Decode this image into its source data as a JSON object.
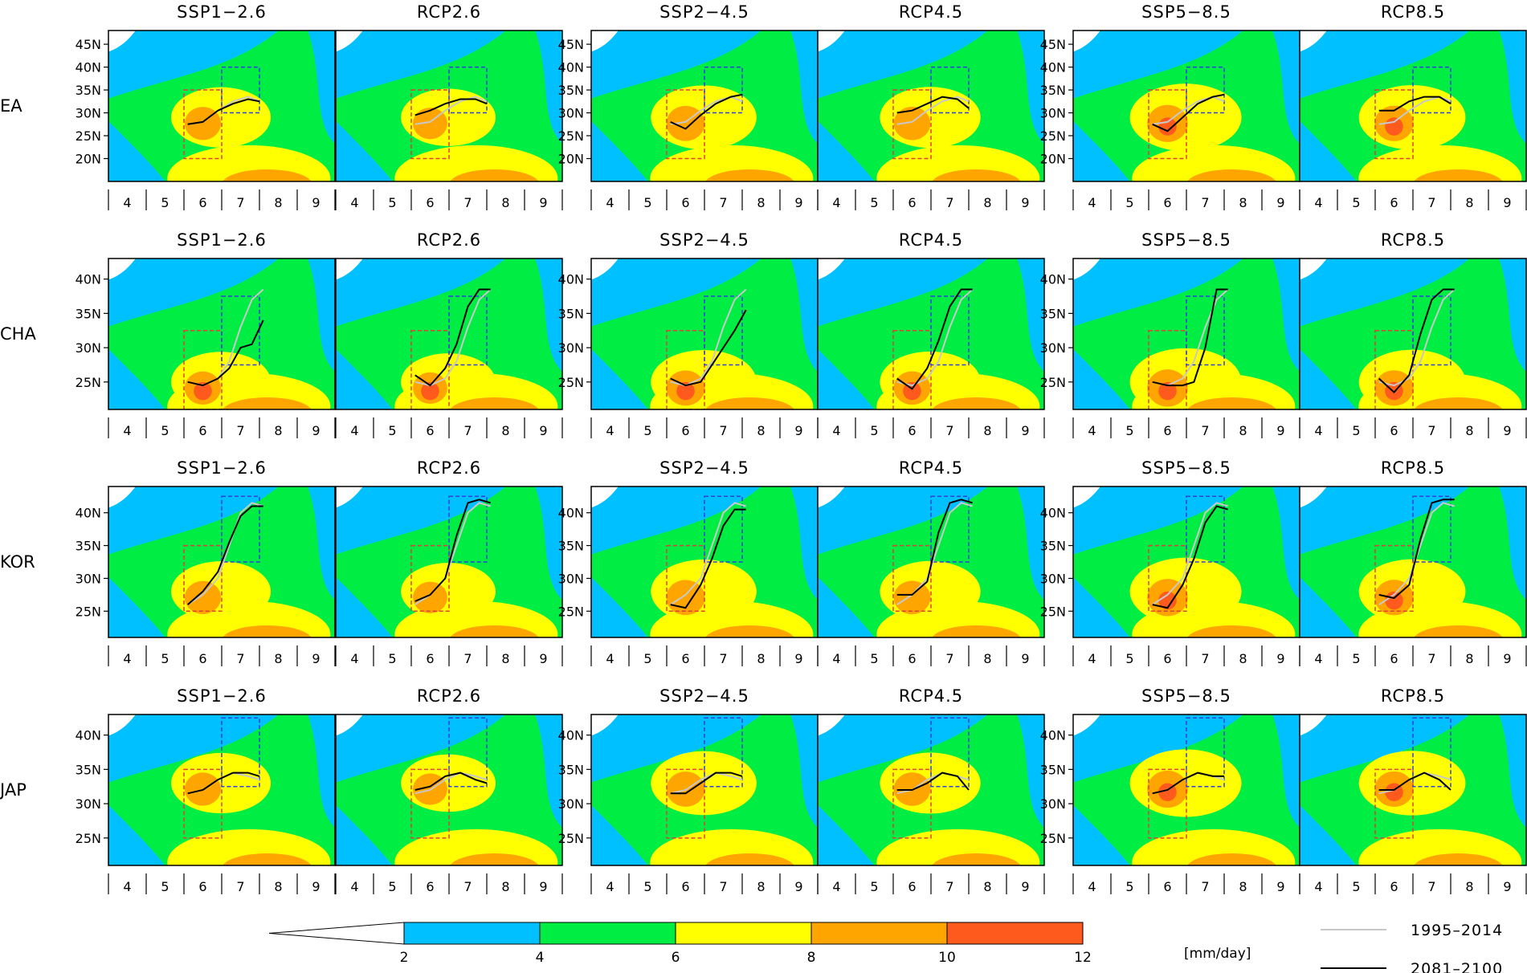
{
  "chart_data": {
    "type": "heatmap",
    "description_axes": {
      "x_ticks": [
        "4",
        "5",
        "6",
        "7",
        "8",
        "9"
      ],
      "x_quantity": "month"
    },
    "colorbar": {
      "levels": [
        2,
        4,
        6,
        8,
        10,
        12
      ],
      "unit_label": "[mm/day]",
      "colors": [
        "#ffffff",
        "#00c0ff",
        "#00ee44",
        "#ffff00",
        "#ffa500",
        "#ff5a1e",
        "#ff1e1e"
      ],
      "extend": "both"
    },
    "legend": {
      "position": "bottom-right",
      "entries": [
        {
          "label": "1995–2014",
          "color": "#c8c8c8"
        },
        {
          "label": "2081–2100",
          "color": "#000000"
        }
      ]
    },
    "column_titles": [
      "SSP1−2.6",
      "RCP2.6",
      "SSP2−4.5",
      "RCP4.5",
      "SSP5−8.5",
      "RCP8.5"
    ],
    "regions": [
      {
        "label": "EA",
        "y_ticks": [
          "20N",
          "25N",
          "30N",
          "35N",
          "40N",
          "45N"
        ],
        "ylim": [
          15,
          48
        ],
        "red_box": {
          "x": [
            5.5,
            6.5
          ],
          "y": [
            20,
            35
          ]
        },
        "blue_box": {
          "x": [
            6.5,
            7.5
          ],
          "y": [
            30,
            40
          ]
        },
        "peak": {
          "x": 6.0,
          "y": 29
        },
        "past_line": {
          "x": [
            5.6,
            6.0,
            6.4,
            6.8,
            7.2,
            7.5
          ],
          "y": [
            27.5,
            28.0,
            30.5,
            32.5,
            33.5,
            32.5
          ]
        },
        "future_lines": [
          {
            "x": [
              5.6,
              6.0,
              6.4,
              6.8,
              7.2,
              7.5
            ],
            "y": [
              27.5,
              28.0,
              30.5,
              32.0,
              33.0,
              32.5
            ]
          },
          {
            "x": [
              5.6,
              6.0,
              6.4,
              6.8,
              7.2,
              7.5
            ],
            "y": [
              29.5,
              30.5,
              32.0,
              33.0,
              33.0,
              32.0
            ]
          },
          {
            "x": [
              5.6,
              6.0,
              6.4,
              6.8,
              7.2,
              7.5
            ],
            "y": [
              28.0,
              26.5,
              29.5,
              32.0,
              33.5,
              34.0
            ]
          },
          {
            "x": [
              5.6,
              6.0,
              6.4,
              6.8,
              7.2,
              7.5
            ],
            "y": [
              30.0,
              30.5,
              32.0,
              33.5,
              33.0,
              31.0
            ]
          },
          {
            "x": [
              5.6,
              6.0,
              6.4,
              6.8,
              7.2,
              7.5
            ],
            "y": [
              27.5,
              26.0,
              29.0,
              32.0,
              33.5,
              34.0
            ]
          },
          {
            "x": [
              5.6,
              6.0,
              6.4,
              6.8,
              7.2,
              7.5
            ],
            "y": [
              30.5,
              30.5,
              32.5,
              33.5,
              33.5,
              32.0
            ]
          }
        ]
      },
      {
        "label": "CHA",
        "y_ticks": [
          "25N",
          "30N",
          "35N",
          "40N"
        ],
        "ylim": [
          21,
          43
        ],
        "red_box": {
          "x": [
            5.5,
            6.5
          ],
          "y": [
            21,
            32.5
          ]
        },
        "blue_box": {
          "x": [
            6.5,
            7.5
          ],
          "y": [
            27.5,
            37.5
          ]
        },
        "peak": {
          "x": 6.0,
          "y": 25
        },
        "past_line": {
          "x": [
            5.6,
            6.0,
            6.4,
            6.7,
            7.0,
            7.3,
            7.6
          ],
          "y": [
            25,
            24.5,
            25.5,
            28,
            33,
            37,
            38.5
          ]
        },
        "future_lines": [
          {
            "x": [
              5.6,
              6.0,
              6.4,
              6.7,
              7.0,
              7.3,
              7.6
            ],
            "y": [
              25,
              24.5,
              25.5,
              27,
              30,
              30.5,
              34
            ]
          },
          {
            "x": [
              5.6,
              6.0,
              6.4,
              6.7,
              7.0,
              7.3,
              7.6
            ],
            "y": [
              26,
              24.5,
              27,
              30.5,
              36,
              38.5,
              38.5
            ]
          },
          {
            "x": [
              5.6,
              6.0,
              6.4,
              6.7,
              7.0,
              7.3,
              7.6
            ],
            "y": [
              25.5,
              24.5,
              25,
              27.5,
              30,
              32.5,
              35.5
            ]
          },
          {
            "x": [
              5.6,
              6.0,
              6.4,
              6.7,
              7.0,
              7.3,
              7.6
            ],
            "y": [
              25.5,
              24,
              27,
              31,
              36,
              38.5,
              38.5
            ]
          },
          {
            "x": [
              5.6,
              6.0,
              6.4,
              6.7,
              7.0,
              7.3,
              7.6
            ],
            "y": [
              25,
              24.5,
              24.5,
              25,
              30,
              38.5,
              38.5
            ]
          },
          {
            "x": [
              5.6,
              6.0,
              6.4,
              6.7,
              7.0,
              7.3,
              7.6
            ],
            "y": [
              25.5,
              23.5,
              26,
              32,
              37,
              38.5,
              38.5
            ]
          }
        ]
      },
      {
        "label": "KOR",
        "y_ticks": [
          "25N",
          "30N",
          "35N",
          "40N"
        ],
        "ylim": [
          21,
          44
        ],
        "red_box": {
          "x": [
            5.5,
            6.5
          ],
          "y": [
            25,
            35
          ]
        },
        "blue_box": {
          "x": [
            6.5,
            7.5
          ],
          "y": [
            32.5,
            42.5
          ]
        },
        "peak": {
          "x": 6.0,
          "y": 28
        },
        "past_line": {
          "x": [
            5.6,
            6.0,
            6.4,
            6.7,
            7.0,
            7.3,
            7.6
          ],
          "y": [
            26,
            27.5,
            30,
            35,
            40,
            41.5,
            41
          ]
        },
        "future_lines": [
          {
            "x": [
              5.6,
              6.0,
              6.4,
              6.7,
              7.0,
              7.3,
              7.6
            ],
            "y": [
              26,
              28,
              31,
              35.5,
              39.5,
              41,
              41
            ]
          },
          {
            "x": [
              5.6,
              6.0,
              6.4,
              6.7,
              7.0,
              7.3,
              7.6
            ],
            "y": [
              26.5,
              27.5,
              30,
              36.5,
              41.5,
              42,
              41.5
            ]
          },
          {
            "x": [
              5.6,
              6.0,
              6.4,
              6.7,
              7.0,
              7.3,
              7.6
            ],
            "y": [
              26,
              25.5,
              29,
              33,
              38,
              40.5,
              40.5
            ]
          },
          {
            "x": [
              5.6,
              6.0,
              6.4,
              6.7,
              7.0,
              7.3,
              7.6
            ],
            "y": [
              27.5,
              27.5,
              29.5,
              37,
              41.5,
              42,
              41.5
            ]
          },
          {
            "x": [
              5.6,
              6.0,
              6.4,
              6.7,
              7.0,
              7.3,
              7.6
            ],
            "y": [
              26,
              25.5,
              29,
              33,
              38.5,
              41,
              40.5
            ]
          },
          {
            "x": [
              5.6,
              6.0,
              6.4,
              6.7,
              7.0,
              7.3,
              7.6
            ],
            "y": [
              27.5,
              27,
              29,
              36,
              41.5,
              42,
              42
            ]
          }
        ]
      },
      {
        "label": "JAP",
        "y_ticks": [
          "25N",
          "30N",
          "35N",
          "40N"
        ],
        "ylim": [
          21,
          43
        ],
        "red_box": {
          "x": [
            5.5,
            6.5
          ],
          "y": [
            25,
            35
          ]
        },
        "blue_box": {
          "x": [
            6.5,
            7.5
          ],
          "y": [
            32.5,
            42.5
          ]
        },
        "peak": {
          "x": 6.0,
          "y": 33
        },
        "past_line": {
          "x": [
            5.6,
            6.0,
            6.4,
            6.8,
            7.2,
            7.5
          ],
          "y": [
            31.5,
            32,
            33.5,
            34.5,
            34,
            33.5
          ]
        },
        "future_lines": [
          {
            "x": [
              5.6,
              6.0,
              6.4,
              6.8,
              7.2,
              7.5
            ],
            "y": [
              31.5,
              32,
              33.5,
              34.5,
              34.5,
              34
            ]
          },
          {
            "x": [
              5.6,
              6.0,
              6.4,
              6.8,
              7.2,
              7.5
            ],
            "y": [
              32,
              32.5,
              34,
              34.5,
              33.5,
              33
            ]
          },
          {
            "x": [
              5.6,
              6.0,
              6.4,
              6.8,
              7.2,
              7.5
            ],
            "y": [
              31.5,
              31.5,
              33,
              34.5,
              34.5,
              34
            ]
          },
          {
            "x": [
              5.6,
              6.0,
              6.4,
              6.8,
              7.2,
              7.5
            ],
            "y": [
              32,
              32,
              33,
              34.5,
              34,
              32
            ]
          },
          {
            "x": [
              5.6,
              6.0,
              6.4,
              6.8,
              7.2,
              7.5
            ],
            "y": [
              31.5,
              32,
              33.5,
              34.5,
              34,
              34
            ]
          },
          {
            "x": [
              5.6,
              6.0,
              6.4,
              6.8,
              7.2,
              7.5
            ],
            "y": [
              32,
              32,
              33.5,
              34.5,
              33.5,
              32
            ]
          }
        ]
      }
    ]
  }
}
